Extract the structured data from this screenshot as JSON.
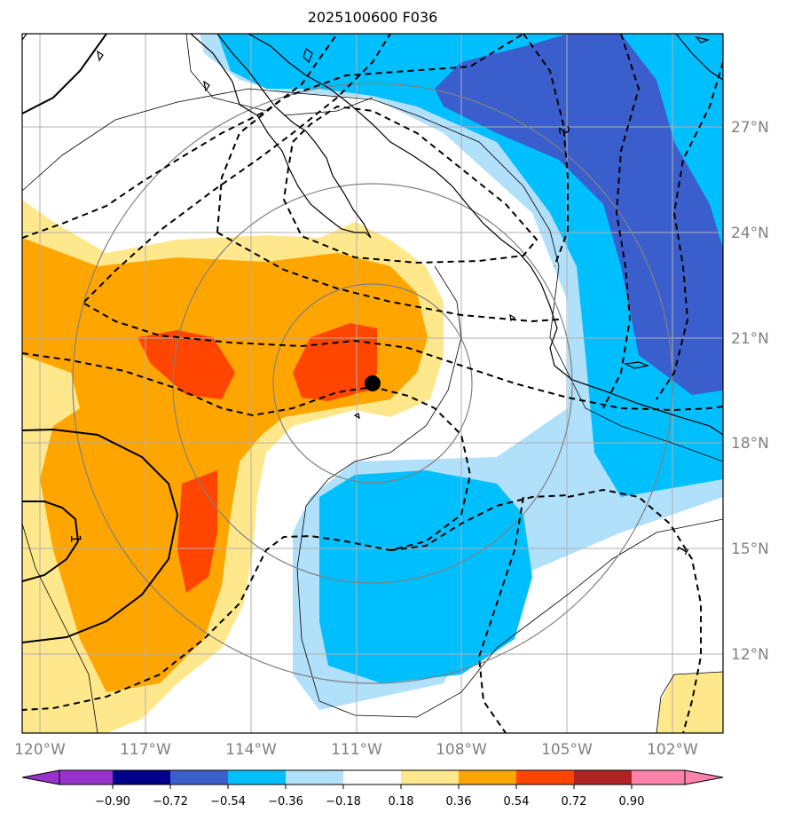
{
  "title": "2025100600 F036",
  "x_tick_labels": [
    "120°W",
    "117°W",
    "114°W",
    "111°W",
    "108°W",
    "105°W",
    "102°W"
  ],
  "y_tick_labels": [
    "27°N",
    "24°N",
    "21°N",
    "18°N",
    "15°N",
    "12°N"
  ],
  "colorbar": {
    "tick_labels": [
      "−0.90",
      "−0.72",
      "−0.54",
      "−0.36",
      "−0.18",
      "0.18",
      "0.36",
      "0.54",
      "0.72",
      "0.90"
    ],
    "colors": [
      "#9932cc",
      "#00008b",
      "#3a5fcd",
      "#00bfff",
      "#b0e0fa",
      "#ffffff",
      "#ffe88c",
      "#ffa500",
      "#ff4500",
      "#b22222",
      "#ff82ab"
    ]
  },
  "contour_labels": [
    "1",
    "1",
    "2"
  ],
  "fill_colors": {
    "dark_blue": "#3a5fcd",
    "blue": "#00bfff",
    "light_blue": "#b0e0fa",
    "light_yellow": "#ffe88c",
    "orange": "#ffa500",
    "red_orange": "#ff4500"
  },
  "marker": {
    "name": "storm center",
    "lon": -110.5,
    "lat": 19.7,
    "color": "#000000"
  }
}
